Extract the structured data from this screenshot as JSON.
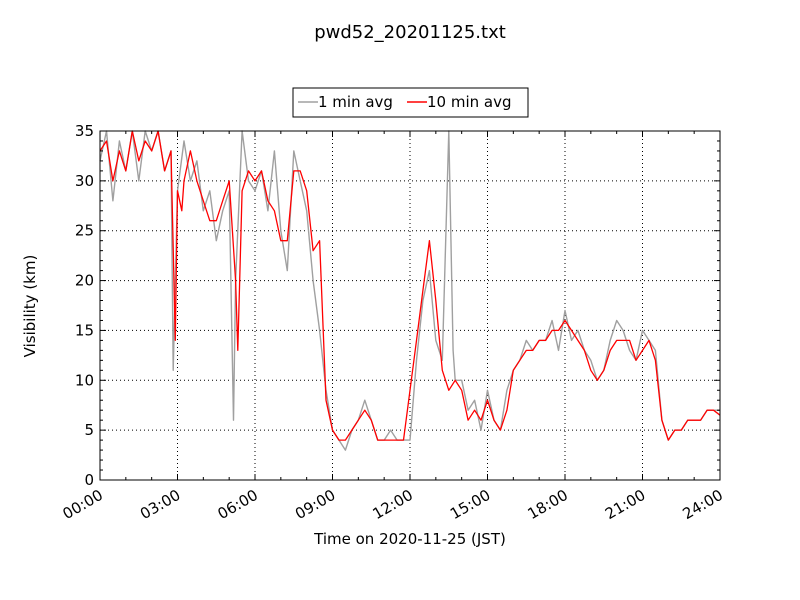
{
  "chart_data": {
    "type": "line",
    "title": "pwd52_20201125.txt",
    "xlabel": "Time on 2020-11-25 (JST)",
    "ylabel": "Visibility (km)",
    "xlim": [
      "00:00",
      "24:00"
    ],
    "ylim": [
      0,
      35
    ],
    "x_ticks": [
      "00:00",
      "03:00",
      "06:00",
      "09:00",
      "12:00",
      "15:00",
      "18:00",
      "21:00",
      "24:00"
    ],
    "y_ticks": [
      "0",
      "5",
      "10",
      "15",
      "20",
      "25",
      "30",
      "35"
    ],
    "grid": true,
    "legend_position": "top-center",
    "series": [
      {
        "name": "1 min avg",
        "color": "#a0a0a0",
        "x": [
          "00:00",
          "00:15",
          "00:30",
          "00:45",
          "01:00",
          "01:15",
          "01:30",
          "01:45",
          "02:00",
          "02:15",
          "02:30",
          "02:45",
          "02:50",
          "03:00",
          "03:15",
          "03:30",
          "03:45",
          "04:00",
          "04:15",
          "04:30",
          "04:45",
          "05:00",
          "05:10",
          "05:15",
          "05:30",
          "05:45",
          "06:00",
          "06:15",
          "06:30",
          "06:45",
          "07:00",
          "07:15",
          "07:30",
          "07:45",
          "08:00",
          "08:15",
          "08:30",
          "08:45",
          "09:00",
          "09:15",
          "09:30",
          "09:45",
          "10:00",
          "10:15",
          "10:30",
          "10:45",
          "11:00",
          "11:15",
          "11:30",
          "11:45",
          "12:00",
          "12:15",
          "12:30",
          "12:45",
          "13:00",
          "13:15",
          "13:30",
          "13:40",
          "13:45",
          "14:00",
          "14:15",
          "14:30",
          "14:45",
          "15:00",
          "15:15",
          "15:30",
          "15:45",
          "16:00",
          "16:15",
          "16:30",
          "16:45",
          "17:00",
          "17:15",
          "17:30",
          "17:45",
          "18:00",
          "18:15",
          "18:30",
          "18:45",
          "19:00",
          "19:15",
          "19:30",
          "19:45",
          "20:00",
          "20:15",
          "20:30",
          "20:45",
          "21:00",
          "21:15",
          "21:30",
          "21:45",
          "22:00",
          "22:15",
          "22:30",
          "22:45",
          "23:00",
          "23:15",
          "23:30",
          "23:45",
          "24:00"
        ],
        "y": [
          32,
          35,
          28,
          34,
          31,
          36,
          30,
          35,
          33,
          35,
          31,
          33,
          11,
          29,
          34,
          30,
          32,
          27,
          29,
          24,
          27,
          29,
          6,
          20,
          35,
          30,
          29,
          31,
          27,
          33,
          25,
          21,
          33,
          30,
          27,
          20,
          15,
          9,
          5,
          4,
          3,
          5,
          6,
          8,
          6,
          4,
          4,
          5,
          4,
          4,
          4,
          12,
          18,
          21,
          14,
          12,
          36,
          13,
          10,
          10,
          7,
          8,
          5,
          9,
          6,
          5,
          9,
          11,
          12,
          14,
          13,
          14,
          14,
          16,
          13,
          17,
          14,
          15,
          13,
          12,
          10,
          11,
          14,
          16,
          15,
          13,
          12,
          15,
          14,
          13,
          6,
          4,
          5,
          5,
          6,
          6,
          6,
          7,
          7,
          7
        ]
      },
      {
        "name": "10 min avg",
        "color": "#ff0000",
        "x": [
          "00:00",
          "00:15",
          "00:30",
          "00:45",
          "01:00",
          "01:15",
          "01:30",
          "01:45",
          "02:00",
          "02:15",
          "02:30",
          "02:45",
          "02:55",
          "03:00",
          "03:10",
          "03:15",
          "03:30",
          "03:45",
          "04:00",
          "04:15",
          "04:30",
          "04:45",
          "05:00",
          "05:15",
          "05:20",
          "05:30",
          "05:45",
          "06:00",
          "06:15",
          "06:30",
          "06:45",
          "07:00",
          "07:15",
          "07:30",
          "07:45",
          "08:00",
          "08:15",
          "08:30",
          "08:45",
          "09:00",
          "09:15",
          "09:30",
          "09:45",
          "10:00",
          "10:15",
          "10:30",
          "10:45",
          "11:00",
          "11:15",
          "11:30",
          "11:45",
          "12:00",
          "12:15",
          "12:30",
          "12:45",
          "13:00",
          "13:15",
          "13:30",
          "13:45",
          "14:00",
          "14:15",
          "14:30",
          "14:45",
          "15:00",
          "15:15",
          "15:30",
          "15:45",
          "16:00",
          "16:15",
          "16:30",
          "16:45",
          "17:00",
          "17:15",
          "17:30",
          "17:45",
          "18:00",
          "18:15",
          "18:30",
          "18:45",
          "19:00",
          "19:15",
          "19:30",
          "19:45",
          "20:00",
          "20:15",
          "20:30",
          "20:45",
          "21:00",
          "21:15",
          "21:30",
          "21:45",
          "22:00",
          "22:15",
          "22:30",
          "22:45",
          "23:00",
          "23:15",
          "23:30",
          "23:45",
          "24:00"
        ],
        "y": [
          33,
          34,
          30,
          33,
          31,
          35,
          32,
          34,
          33,
          35,
          31,
          33,
          14,
          29,
          27,
          30,
          33,
          30,
          28,
          26,
          26,
          28,
          30,
          20,
          13,
          29,
          31,
          30,
          31,
          28,
          27,
          24,
          24,
          31,
          31,
          29,
          23,
          24,
          8,
          5,
          4,
          4,
          5,
          6,
          7,
          6,
          4,
          4,
          4,
          4,
          4,
          9,
          14,
          19,
          24,
          18,
          11,
          9,
          10,
          9,
          6,
          7,
          6,
          8,
          6,
          5,
          7,
          11,
          12,
          13,
          13,
          14,
          14,
          15,
          15,
          16,
          15,
          14,
          13,
          11,
          10,
          11,
          13,
          14,
          14,
          14,
          12,
          13,
          14,
          12,
          6,
          4,
          5,
          5,
          6,
          6,
          6,
          7,
          7,
          6.5
        ]
      }
    ]
  }
}
